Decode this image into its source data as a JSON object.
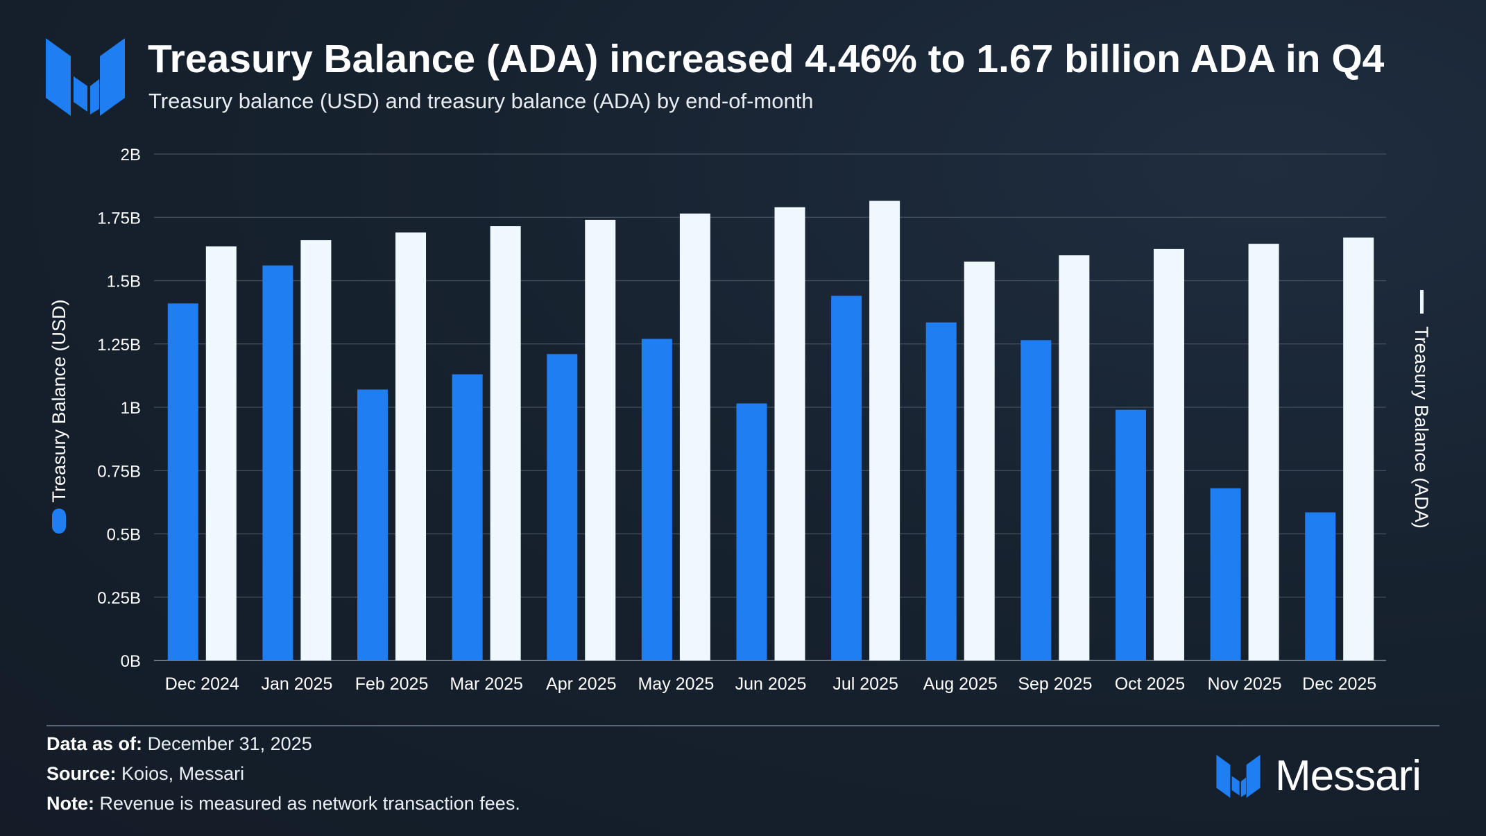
{
  "header": {
    "title": "Treasury Balance (ADA) increased 4.46% to 1.67 billion ADA in Q4",
    "subtitle": "Treasury balance (USD) and treasury balance (ADA) by end-of-month"
  },
  "icons": {
    "logo": "messari-logo-icon",
    "brand": "messari-brand-icon"
  },
  "colors": {
    "usd": "#1f7ef2",
    "ada": "#eef8fd",
    "grid": "#46505e",
    "text": "#ffffff"
  },
  "chart_data": {
    "type": "bar",
    "title": "Treasury Balance (ADA) increased 4.46% to 1.67 billion ADA in Q4",
    "categories": [
      "Dec 2024",
      "Jan 2025",
      "Feb 2025",
      "Mar 2025",
      "Apr 2025",
      "May 2025",
      "Jun 2025",
      "Jul 2025",
      "Aug 2025",
      "Sep 2025",
      "Oct 2025",
      "Nov 2025",
      "Dec 2025"
    ],
    "series": [
      {
        "name": "Treasury Balance (USD)",
        "axis": "left",
        "values": [
          1.41,
          1.56,
          1.07,
          1.13,
          1.21,
          1.27,
          1.015,
          1.44,
          1.335,
          1.265,
          0.99,
          0.68,
          0.585
        ]
      },
      {
        "name": "Treasury Balance (ADA)",
        "axis": "right",
        "values": [
          1.635,
          1.66,
          1.69,
          1.715,
          1.74,
          1.765,
          1.79,
          1.815,
          1.575,
          1.6,
          1.625,
          1.645,
          1.67
        ]
      }
    ],
    "yticks": [
      "0B",
      "0.25B",
      "0.5B",
      "0.75B",
      "1B",
      "1.25B",
      "1.5B",
      "1.75B",
      "2B"
    ],
    "ylim": [
      0,
      2
    ],
    "ylabel": "Treasury Balance (USD)",
    "y2label": "Treasury Balance (ADA)",
    "units": "billions"
  },
  "footer": {
    "data_as_of_label": "Data as of:",
    "data_as_of_value": "December 31, 2025",
    "source_label": "Source:",
    "source_value": "Koios, Messari",
    "note_label": "Note:",
    "note_value": "Revenue is measured as network transaction fees.",
    "brand_name": "Messari"
  }
}
